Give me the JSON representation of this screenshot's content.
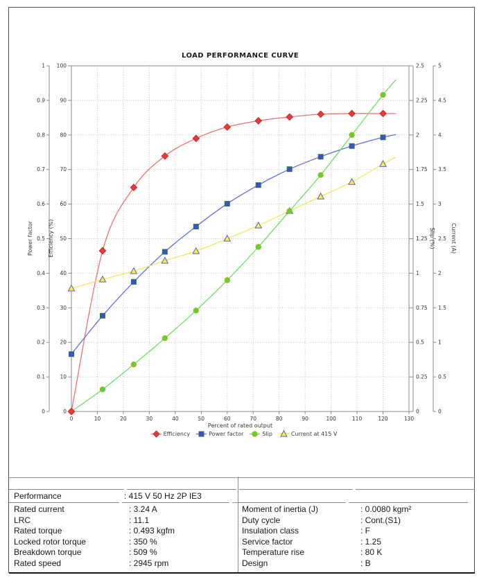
{
  "chart_data": {
    "type": "line",
    "title": "LOAD PERFORMANCE CURVE",
    "xlabel": "Percent of rated output",
    "xlim": [
      0,
      130
    ],
    "x_ticks": [
      "0",
      "10",
      "20",
      "30",
      "40",
      "50",
      "60",
      "70",
      "80",
      "90",
      "100",
      "110",
      "120",
      "130"
    ],
    "grid": "dotted",
    "legend_position": "bottom",
    "axes": {
      "power_factor": {
        "title": "Power factor",
        "range": [
          0,
          1
        ],
        "ticks": [
          "0",
          "0.1",
          "0.2",
          "0.3",
          "0.4",
          "0.5",
          "0.6",
          "0.7",
          "0.8",
          "0.9",
          "1"
        ],
        "side": "outer-left"
      },
      "efficiency": {
        "title": "Efficiency (%)",
        "range": [
          0,
          100
        ],
        "ticks": [
          "0",
          "10",
          "20",
          "30",
          "40",
          "50",
          "60",
          "70",
          "80",
          "90",
          "100"
        ],
        "side": "inner-left"
      },
      "slip": {
        "title": "Slip (%)",
        "range": [
          0,
          2.5
        ],
        "ticks": [
          "0",
          "0.25",
          "0.5",
          "0.75",
          "1",
          "1.25",
          "1.5",
          "1.75",
          "2",
          "2.25",
          "2.5"
        ],
        "side": "inner-right"
      },
      "current": {
        "title": "Current (A)",
        "range": [
          0,
          5
        ],
        "ticks": [
          "0",
          "0.5",
          "1",
          "1.5",
          "2",
          "2.5",
          "3",
          "3.5",
          "4",
          "4.5",
          "5"
        ],
        "side": "outer-right"
      }
    },
    "x": [
      0,
      12,
      24,
      36,
      48,
      60,
      72,
      84,
      96,
      108,
      120
    ],
    "series": [
      {
        "name": "Efficiency",
        "axis": "efficiency",
        "marker": "diamond",
        "values": [
          0,
          46.5,
          64.8,
          73.9,
          79.0,
          82.3,
          84.1,
          85.2,
          86.0,
          86.2,
          86.2
        ],
        "end_x": 125,
        "end_value": 86.2,
        "line_color": "#f07070",
        "fill": "#ea3a3a",
        "stroke": "#c62828"
      },
      {
        "name": "Power factor",
        "axis": "power_factor",
        "marker": "square",
        "values": [
          0.166,
          0.277,
          0.375,
          0.462,
          0.535,
          0.601,
          0.655,
          0.701,
          0.737,
          0.768,
          0.793
        ],
        "end_x": 125,
        "end_value": 0.801,
        "line_color": "#5d6ee3",
        "fill": "#3a50d0",
        "stroke": "#2e7d32"
      },
      {
        "name": "Current at 415 V",
        "axis": "current",
        "marker": "triangle",
        "values": [
          1.78,
          1.91,
          2.03,
          2.18,
          2.32,
          2.5,
          2.69,
          2.9,
          3.11,
          3.32,
          3.58
        ],
        "end_x": 125,
        "end_value": 3.68,
        "line_color": "#efe95f",
        "fill": "#f6f13e",
        "stroke": "#5a5ace"
      },
      {
        "name": "Slip",
        "axis": "slip",
        "marker": "circle",
        "values": [
          0,
          0.16,
          0.34,
          0.53,
          0.73,
          0.95,
          1.19,
          1.45,
          1.71,
          2.0,
          2.29
        ],
        "end_x": 125,
        "end_value": 2.4,
        "line_color": "#69e25e",
        "fill": "#4fd837",
        "stroke": "#d2a017"
      }
    ],
    "legend": [
      "Efficiency",
      "Power factor",
      "Slip",
      "Current at 415 V"
    ]
  },
  "table": {
    "performance_label": "Performance",
    "performance_value": ": 415 V 50 Hz 2P IE3",
    "left": [
      {
        "label": "Rated current",
        "value": ": 3.24 A"
      },
      {
        "label": "LRC",
        "value": ": 11.1"
      },
      {
        "label": "Rated torque",
        "value": ": 0.493 kgfm"
      },
      {
        "label": "Locked rotor torque",
        "value": ": 350 %"
      },
      {
        "label": "Breakdown torque",
        "value": ": 509 %"
      },
      {
        "label": "Rated speed",
        "value": ": 2945 rpm"
      }
    ],
    "right": [
      {
        "label": "Moment of inertia (J)",
        "value": ": 0.0080 kgm²"
      },
      {
        "label": "Duty cycle",
        "value": ": Cont.(S1)"
      },
      {
        "label": "Insulation class",
        "value": ": F"
      },
      {
        "label": "Service factor",
        "value": ": 1.25"
      },
      {
        "label": "Temperature rise",
        "value": ": 80 K"
      },
      {
        "label": "Design",
        "value": ": B"
      }
    ]
  }
}
